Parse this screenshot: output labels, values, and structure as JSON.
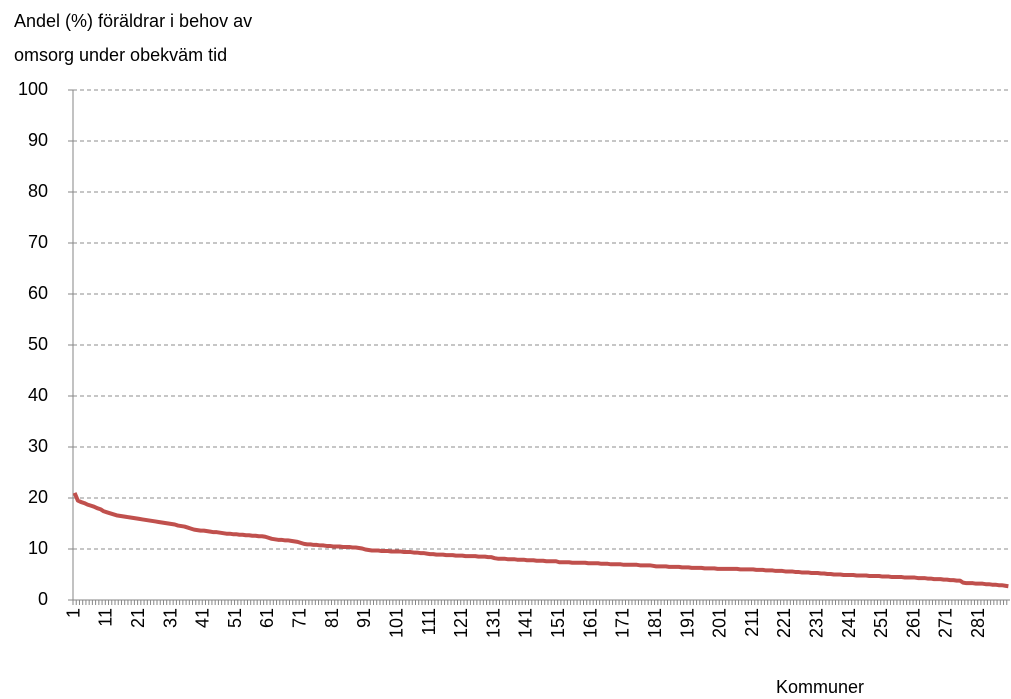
{
  "chart_data": {
    "type": "line",
    "ylabel": [
      "Andel (%) föräldrar i behov av",
      "omsorg under obekväm tid"
    ],
    "xlabel": "Kommuner",
    "categories": [
      "1",
      null,
      null,
      null,
      null,
      null,
      null,
      null,
      null,
      null,
      "11",
      null,
      null,
      null,
      null,
      null,
      null,
      null,
      null,
      null,
      "21",
      null,
      null,
      null,
      null,
      null,
      null,
      null,
      null,
      null,
      "31",
      null,
      null,
      null,
      null,
      null,
      null,
      null,
      null,
      null,
      "41",
      null,
      null,
      null,
      null,
      null,
      null,
      null,
      null,
      null,
      "51",
      null,
      null,
      null,
      null,
      null,
      null,
      null,
      null,
      null,
      "61",
      null,
      null,
      null,
      null,
      null,
      null,
      null,
      null,
      null,
      "71",
      null,
      null,
      null,
      null,
      null,
      null,
      null,
      null,
      null,
      "81",
      null,
      null,
      null,
      null,
      null,
      null,
      null,
      null,
      null,
      "91",
      null,
      null,
      null,
      null,
      null,
      null,
      null,
      null,
      null,
      "101",
      null,
      null,
      null,
      null,
      null,
      null,
      null,
      null,
      null,
      "111",
      null,
      null,
      null,
      null,
      null,
      null,
      null,
      null,
      null,
      "121",
      null,
      null,
      null,
      null,
      null,
      null,
      null,
      null,
      null,
      "131",
      null,
      null,
      null,
      null,
      null,
      null,
      null,
      null,
      null,
      "141",
      null,
      null,
      null,
      null,
      null,
      null,
      null,
      null,
      null,
      "151",
      null,
      null,
      null,
      null,
      null,
      null,
      null,
      null,
      null,
      "161",
      null,
      null,
      null,
      null,
      null,
      null,
      null,
      null,
      null,
      "171",
      null,
      null,
      null,
      null,
      null,
      null,
      null,
      null,
      null,
      "181",
      null,
      null,
      null,
      null,
      null,
      null,
      null,
      null,
      null,
      "191",
      null,
      null,
      null,
      null,
      null,
      null,
      null,
      null,
      null,
      "201",
      null,
      null,
      null,
      null,
      null,
      null,
      null,
      null,
      null,
      "211",
      null,
      null,
      null,
      null,
      null,
      null,
      null,
      null,
      null,
      "221",
      null,
      null,
      null,
      null,
      null,
      null,
      null,
      null,
      null,
      "231",
      null,
      null,
      null,
      null,
      null,
      null,
      null,
      null,
      null,
      "241",
      null,
      null,
      null,
      null,
      null,
      null,
      null,
      null,
      null,
      "251",
      null,
      null,
      null,
      null,
      null,
      null,
      null,
      null,
      null,
      "261",
      null,
      null,
      null,
      null,
      null,
      null,
      null,
      null,
      null,
      "271",
      null,
      null,
      null,
      null,
      null,
      null,
      null,
      null,
      null,
      "281",
      null,
      null,
      null,
      null,
      null,
      null,
      null,
      null,
      null
    ],
    "values": [
      21.0,
      19.5,
      19.2,
      19.0,
      18.7,
      18.5,
      18.3,
      18.0,
      17.8,
      17.4,
      17.2,
      17.0,
      16.8,
      16.6,
      16.5,
      16.4,
      16.3,
      16.2,
      16.1,
      16.0,
      15.9,
      15.8,
      15.7,
      15.6,
      15.5,
      15.4,
      15.3,
      15.2,
      15.1,
      15.0,
      14.9,
      14.8,
      14.6,
      14.5,
      14.4,
      14.2,
      14.0,
      13.8,
      13.7,
      13.6,
      13.6,
      13.5,
      13.4,
      13.3,
      13.3,
      13.2,
      13.1,
      13.0,
      13.0,
      12.9,
      12.9,
      12.8,
      12.8,
      12.7,
      12.7,
      12.6,
      12.6,
      12.5,
      12.5,
      12.4,
      12.2,
      12.0,
      11.9,
      11.8,
      11.8,
      11.7,
      11.7,
      11.6,
      11.5,
      11.4,
      11.2,
      11.0,
      10.9,
      10.9,
      10.8,
      10.8,
      10.7,
      10.7,
      10.6,
      10.6,
      10.5,
      10.5,
      10.5,
      10.4,
      10.4,
      10.4,
      10.3,
      10.3,
      10.2,
      10.1,
      9.9,
      9.8,
      9.7,
      9.7,
      9.7,
      9.6,
      9.6,
      9.6,
      9.5,
      9.5,
      9.5,
      9.5,
      9.4,
      9.4,
      9.4,
      9.3,
      9.3,
      9.2,
      9.2,
      9.1,
      9.0,
      9.0,
      8.9,
      8.9,
      8.9,
      8.8,
      8.8,
      8.8,
      8.7,
      8.7,
      8.7,
      8.6,
      8.6,
      8.6,
      8.6,
      8.5,
      8.5,
      8.5,
      8.4,
      8.4,
      8.2,
      8.1,
      8.1,
      8.1,
      8.0,
      8.0,
      8.0,
      7.9,
      7.9,
      7.9,
      7.8,
      7.8,
      7.8,
      7.7,
      7.7,
      7.7,
      7.6,
      7.6,
      7.6,
      7.6,
      7.4,
      7.4,
      7.4,
      7.4,
      7.3,
      7.3,
      7.3,
      7.3,
      7.3,
      7.2,
      7.2,
      7.2,
      7.2,
      7.1,
      7.1,
      7.1,
      7.0,
      7.0,
      7.0,
      7.0,
      6.9,
      6.9,
      6.9,
      6.9,
      6.9,
      6.8,
      6.8,
      6.8,
      6.8,
      6.7,
      6.6,
      6.6,
      6.6,
      6.6,
      6.5,
      6.5,
      6.5,
      6.5,
      6.4,
      6.4,
      6.4,
      6.3,
      6.3,
      6.3,
      6.3,
      6.2,
      6.2,
      6.2,
      6.2,
      6.1,
      6.1,
      6.1,
      6.1,
      6.1,
      6.1,
      6.1,
      6.0,
      6.0,
      6.0,
      6.0,
      6.0,
      5.9,
      5.9,
      5.9,
      5.8,
      5.8,
      5.8,
      5.7,
      5.7,
      5.7,
      5.6,
      5.6,
      5.6,
      5.5,
      5.5,
      5.4,
      5.4,
      5.4,
      5.3,
      5.3,
      5.3,
      5.2,
      5.2,
      5.1,
      5.1,
      5.0,
      5.0,
      5.0,
      4.9,
      4.9,
      4.9,
      4.9,
      4.8,
      4.8,
      4.8,
      4.8,
      4.7,
      4.7,
      4.7,
      4.7,
      4.6,
      4.6,
      4.6,
      4.5,
      4.5,
      4.5,
      4.5,
      4.4,
      4.4,
      4.4,
      4.4,
      4.3,
      4.3,
      4.3,
      4.2,
      4.2,
      4.1,
      4.1,
      4.1,
      4.0,
      4.0,
      3.9,
      3.9,
      3.8,
      3.8,
      3.4,
      3.3,
      3.3,
      3.3,
      3.2,
      3.2,
      3.2,
      3.1,
      3.1,
      3.0,
      3.0,
      2.9,
      2.9,
      2.8,
      2.7
    ],
    "color": "#c0504d",
    "ylim": [
      0,
      100
    ],
    "yticks": [
      0,
      10,
      20,
      30,
      40,
      50,
      60,
      70,
      80,
      90,
      100
    ],
    "grid": true
  }
}
